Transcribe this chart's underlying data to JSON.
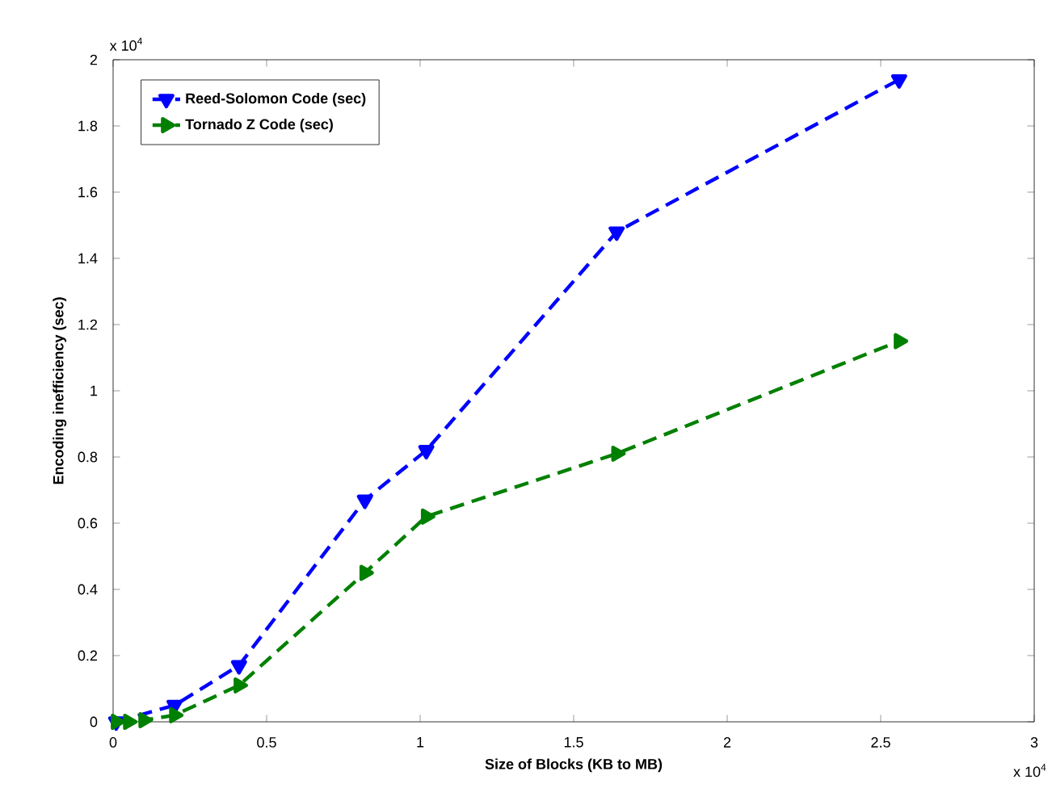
{
  "chart_data": {
    "type": "line",
    "xlabel": "Size of Blocks (KB to MB)",
    "ylabel": "Encoding inefficiency (sec)",
    "annotations": [
      "x 10$^{4}$",
      "x 10$^{4}$"
    ],
    "xlim": [
      0,
      3
    ],
    "xticks": [
      0,
      0.5,
      1,
      1.5,
      2,
      2.5,
      3
    ],
    "ylim": [
      0,
      2
    ],
    "yticks": [
      0,
      0.2,
      0.4,
      0.6,
      0.8,
      1,
      1.2,
      1.4,
      1.6,
      1.8,
      2
    ],
    "x": [
      0.01,
      0.05,
      0.1,
      0.2,
      0.41,
      0.82,
      1.02,
      1.64,
      2.56
    ],
    "series": [
      {
        "name": "Reed-Solomon Code (sec)",
        "color": "#0000ff",
        "marker": "triangle-down",
        "values": [
          0,
          null,
          null,
          0.05,
          0.17,
          0.67,
          0.82,
          1.48,
          1.94
        ]
      },
      {
        "name": "Tornado Z Code (sec)",
        "color": "#008000",
        "marker": "triangle-right",
        "values": [
          0,
          0,
          0.005,
          0.02,
          0.11,
          0.45,
          0.62,
          0.81,
          1.15
        ]
      }
    ],
    "line_style": "dashed",
    "legend": "top left",
    "grid": false
  }
}
